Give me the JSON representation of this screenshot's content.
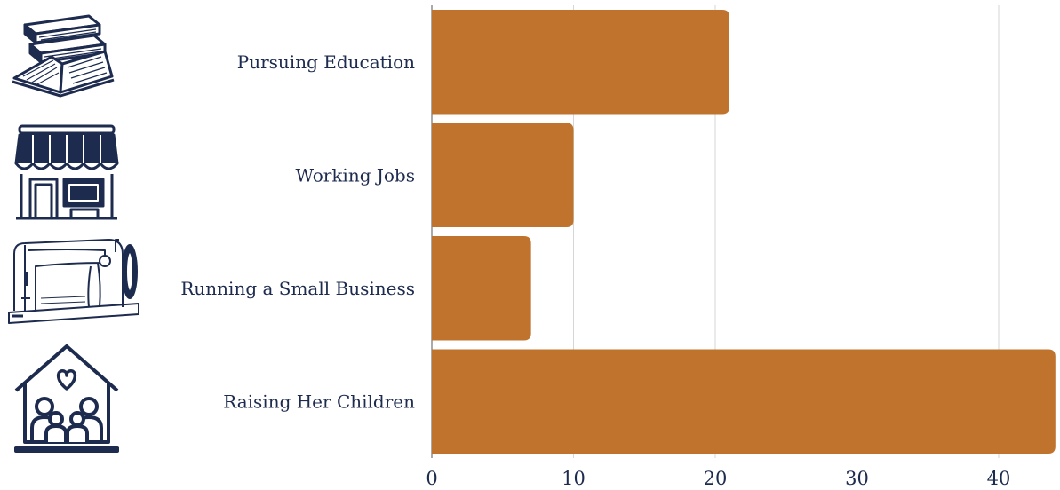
{
  "colors": {
    "bar": "#C0732C",
    "text": "#1D2B4F",
    "grid": "#D6D6D6",
    "axis": "#555555",
    "icon": "#1D2B4F",
    "background": "#FFFFFF"
  },
  "icons": [
    {
      "name": "books-icon",
      "category": "Pursuing Education"
    },
    {
      "name": "storefront-icon",
      "category": "Working Jobs"
    },
    {
      "name": "sewing-machine-icon",
      "category": "Running a Small Business"
    },
    {
      "name": "family-home-icon",
      "category": "Raising Her Children"
    }
  ],
  "chart_data": {
    "type": "bar",
    "orientation": "horizontal",
    "title": "",
    "xlabel": "",
    "ylabel": "",
    "categories": [
      "Pursuing Education",
      "Working Jobs",
      "Running a Small Business",
      "Raising Her Children"
    ],
    "values": [
      21,
      10,
      7,
      44
    ],
    "xlim": [
      0,
      44.2
    ],
    "xticks": [
      0,
      10,
      20,
      30,
      40
    ],
    "grid": true
  }
}
